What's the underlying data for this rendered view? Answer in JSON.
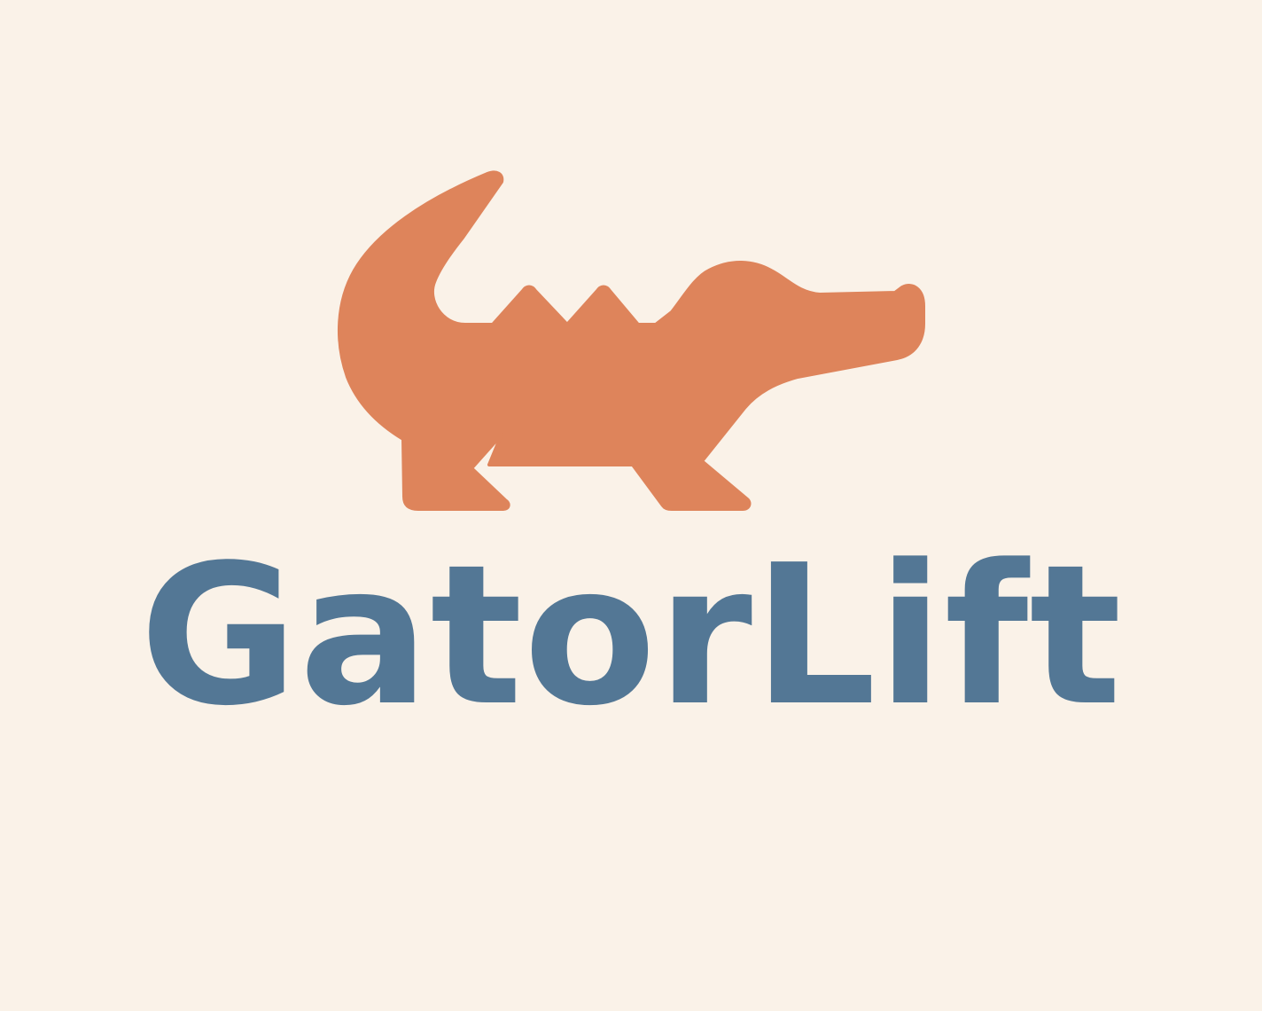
{
  "brand": {
    "name": "GatorLift",
    "mark_icon": "alligator-icon"
  },
  "colors": {
    "background": "#FAF2E8",
    "mark": "#DE845B",
    "wordmark": "#537795"
  }
}
